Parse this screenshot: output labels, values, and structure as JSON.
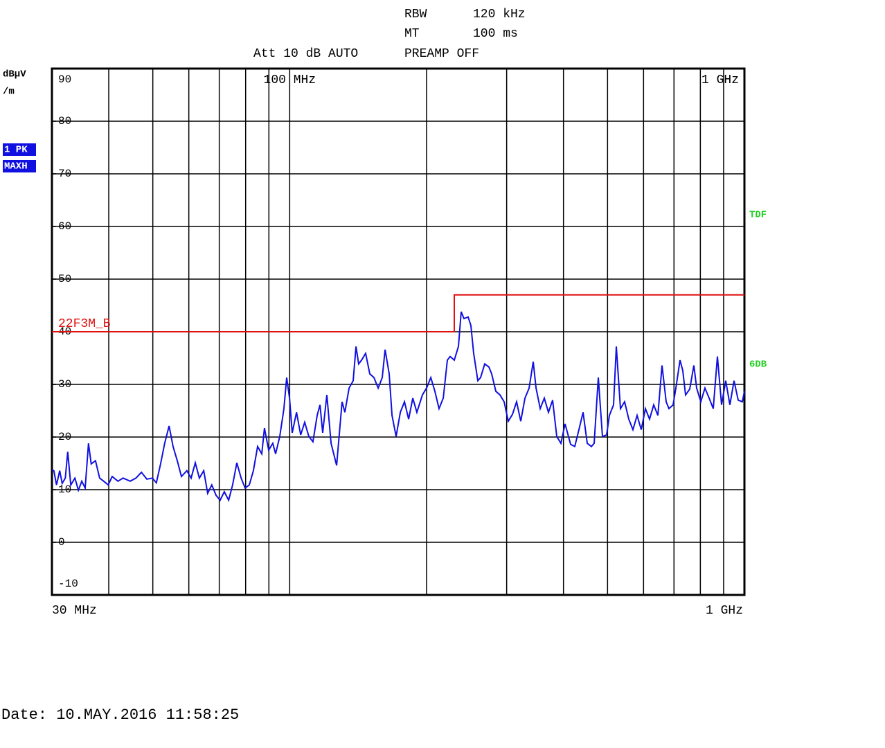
{
  "header": {
    "rbw_label": "RBW",
    "rbw_value": "120 kHz",
    "mt_label": "MT",
    "mt_value": "100 ms",
    "att": "Att 10 dB AUTO",
    "preamp": "PREAMP OFF"
  },
  "badges": [
    "1 PK",
    "MAXH"
  ],
  "side_labels": [
    "TDF",
    "6DB"
  ],
  "date": "Date: 10.MAY.2016  11:58:25",
  "chart_data": {
    "type": "line",
    "ylabel": [
      "dBµV",
      "/m"
    ],
    "xlog": true,
    "xlim": [
      30,
      1000
    ],
    "ylim": [
      -10,
      90
    ],
    "xticks": [
      {
        "value": 100,
        "label": "100 MHz"
      },
      {
        "value": 1000,
        "label": "1 GHz"
      }
    ],
    "xminor": [
      40,
      50,
      60,
      70,
      80,
      90,
      200,
      300,
      400,
      500,
      600,
      700,
      800,
      900
    ],
    "start_label": "30 MHz",
    "stop_label": "1 GHz",
    "yticks": [
      90,
      80,
      70,
      60,
      50,
      40,
      30,
      20,
      10,
      0,
      -10
    ],
    "grid": true,
    "series": [
      {
        "name": null,
        "color": "#1010e0",
        "x": [
          30.0,
          30.3,
          30.7,
          31.2,
          31.6,
          32.1,
          32.5,
          33.0,
          33.7,
          34.3,
          34.9,
          35.5,
          36.1,
          36.6,
          37.4,
          38.2,
          39.0,
          39.9,
          40.7,
          41.9,
          43.0,
          44.6,
          45.9,
          47.2,
          48.5,
          49.9,
          50.9,
          52.0,
          53.1,
          54.3,
          55.4,
          56.6,
          57.8,
          59.4,
          60.7,
          62.0,
          63.3,
          64.7,
          66.0,
          67.4,
          68.9,
          70.3,
          71.8,
          73.4,
          74.9,
          76.5,
          78.2,
          79.8,
          81.5,
          83.2,
          85.0,
          86.8,
          88.0,
          89.9,
          91.8,
          93.1,
          95.1,
          97.1,
          98.5,
          99.9,
          101.3,
          103.5,
          105.7,
          107.9,
          110.2,
          112.5,
          114.9,
          116.6,
          118.2,
          120.7,
          123.3,
          126.8,
          130.4,
          132.2,
          135.1,
          137.9,
          139.9,
          141.8,
          143.9,
          146.9,
          150.0,
          153.2,
          156.5,
          159.8,
          162.1,
          165.5,
          167.9,
          171.4,
          175.1,
          178.8,
          182.6,
          186.5,
          190.4,
          195.8,
          200.0,
          204.3,
          208.6,
          213.0,
          217.6,
          222.2,
          225.3,
          230.1,
          235.0,
          238.3,
          241.7,
          246.8,
          250.3,
          253.8,
          259.2,
          262.9,
          268.5,
          274.2,
          278.1,
          284.0,
          290.0,
          296.2,
          302.5,
          308.9,
          315.5,
          322.2,
          329.1,
          336.1,
          343.2,
          348.1,
          355.5,
          363.0,
          370.7,
          378.6,
          386.6,
          394.9,
          403.3,
          414.7,
          423.5,
          432.5,
          441.7,
          451.1,
          460.7,
          467.2,
          477.2,
          487.3,
          497.7,
          504.7,
          515.4,
          522.7,
          533.8,
          545.2,
          556.8,
          568.6,
          580.7,
          593.1,
          605.7,
          618.6,
          631.7,
          645.2,
          658.9,
          672.9,
          682.4,
          696.9,
          706.7,
          721.8,
          732.0,
          742.3,
          758.1,
          774.2,
          785.2,
          801.9,
          818.9,
          836.3,
          854.1,
          872.3,
          890.8,
          909.8,
          929.1,
          948.8,
          969.0,
          989.6,
          1000
        ],
        "values": [
          13.8,
          13.6,
          10.9,
          13.6,
          11.2,
          12.2,
          17.2,
          10.9,
          12.2,
          9.9,
          11.6,
          10.3,
          18.8,
          14.9,
          15.5,
          12.2,
          11.6,
          10.9,
          12.5,
          11.6,
          12.2,
          11.6,
          12.2,
          13.3,
          12.0,
          12.2,
          11.3,
          14.9,
          18.8,
          22.1,
          18.2,
          15.5,
          12.5,
          13.6,
          12.2,
          15.1,
          12.2,
          13.6,
          9.3,
          10.9,
          8.9,
          8.0,
          9.6,
          8.0,
          10.9,
          15.1,
          12.2,
          10.3,
          10.9,
          13.6,
          18.2,
          16.8,
          21.7,
          17.5,
          18.8,
          16.8,
          20.1,
          25.4,
          31.3,
          27.4,
          20.8,
          24.7,
          20.4,
          22.8,
          20.1,
          19.1,
          24.1,
          26.1,
          20.8,
          28.0,
          18.8,
          14.6,
          26.7,
          24.7,
          29.3,
          30.7,
          37.2,
          33.9,
          34.6,
          35.9,
          32.0,
          31.3,
          29.3,
          31.3,
          36.6,
          32.0,
          24.1,
          20.1,
          24.7,
          26.7,
          23.4,
          27.4,
          24.7,
          28.0,
          29.3,
          31.3,
          28.7,
          25.4,
          27.4,
          34.6,
          35.3,
          34.6,
          37.2,
          43.8,
          42.5,
          42.8,
          41.2,
          35.9,
          30.7,
          31.3,
          33.9,
          33.3,
          32.0,
          28.7,
          28.0,
          26.7,
          23.0,
          24.3,
          26.7,
          23.0,
          27.4,
          29.3,
          34.3,
          29.3,
          25.4,
          27.4,
          24.7,
          27.0,
          20.1,
          18.8,
          22.5,
          18.6,
          18.2,
          21.4,
          24.7,
          18.8,
          18.2,
          18.8,
          31.3,
          20.1,
          20.4,
          24.1,
          26.1,
          37.2,
          25.4,
          26.7,
          23.4,
          21.4,
          24.1,
          21.4,
          25.4,
          23.4,
          26.1,
          24.1,
          33.6,
          26.7,
          25.4,
          26.1,
          29.3,
          34.6,
          32.6,
          28.0,
          29.1,
          33.6,
          29.3,
          26.7,
          29.3,
          27.4,
          25.4,
          35.3,
          26.1,
          30.7,
          26.1,
          30.7,
          27.0,
          26.7,
          28.7
        ]
      },
      {
        "name": "22F3M_B",
        "color": "#e01010",
        "x": [
          30,
          230.1,
          230.1,
          1000
        ],
        "values": [
          40,
          40,
          47,
          47
        ]
      }
    ]
  }
}
